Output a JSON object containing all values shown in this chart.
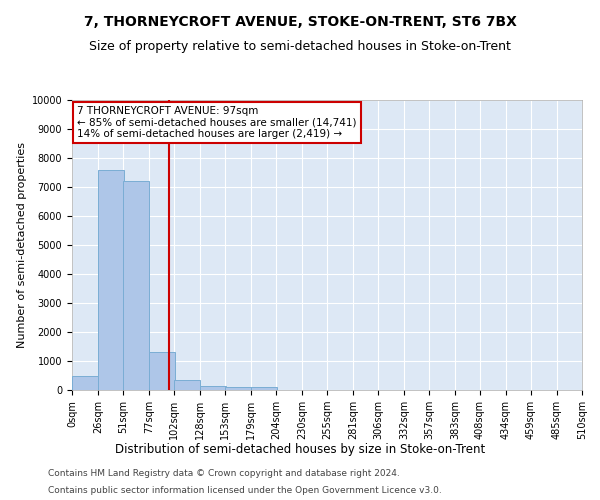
{
  "title": "7, THORNEYCROFT AVENUE, STOKE-ON-TRENT, ST6 7BX",
  "subtitle": "Size of property relative to semi-detached houses in Stoke-on-Trent",
  "xlabel": "Distribution of semi-detached houses by size in Stoke-on-Trent",
  "ylabel": "Number of semi-detached properties",
  "footer1": "Contains HM Land Registry data © Crown copyright and database right 2024.",
  "footer2": "Contains public sector information licensed under the Open Government Licence v3.0.",
  "annotation_title": "7 THORNEYCROFT AVENUE: 97sqm",
  "annotation_line1": "← 85% of semi-detached houses are smaller (14,741)",
  "annotation_line2": "14% of semi-detached houses are larger (2,419) →",
  "property_size": 97,
  "bar_left_edges": [
    0,
    26,
    51,
    77,
    102,
    128,
    153,
    179,
    204,
    230,
    255,
    281,
    306,
    332,
    357,
    383,
    408,
    434,
    459,
    485
  ],
  "bar_heights": [
    500,
    7600,
    7200,
    1300,
    350,
    150,
    100,
    100,
    0,
    0,
    0,
    0,
    0,
    0,
    0,
    0,
    0,
    0,
    0,
    0
  ],
  "bar_width": 25.5,
  "bar_color": "#aec6e8",
  "bar_edge_color": "#7aadd4",
  "vline_color": "#cc0000",
  "vline_x": 97,
  "annotation_box_color": "#cc0000",
  "bg_color": "#ffffff",
  "plot_bg_color": "#dde8f5",
  "ylim": [
    0,
    10000
  ],
  "xlim": [
    0,
    510
  ],
  "yticks": [
    0,
    1000,
    2000,
    3000,
    4000,
    5000,
    6000,
    7000,
    8000,
    9000,
    10000
  ],
  "xtick_labels": [
    "0sqm",
    "26sqm",
    "51sqm",
    "77sqm",
    "102sqm",
    "128sqm",
    "153sqm",
    "179sqm",
    "204sqm",
    "230sqm",
    "255sqm",
    "281sqm",
    "306sqm",
    "332sqm",
    "357sqm",
    "383sqm",
    "408sqm",
    "434sqm",
    "459sqm",
    "485sqm",
    "510sqm"
  ],
  "xtick_positions": [
    0,
    26,
    51,
    77,
    102,
    128,
    153,
    179,
    204,
    230,
    255,
    281,
    306,
    332,
    357,
    383,
    408,
    434,
    459,
    485,
    510
  ],
  "title_fontsize": 10,
  "subtitle_fontsize": 9,
  "xlabel_fontsize": 8.5,
  "ylabel_fontsize": 8,
  "tick_fontsize": 7,
  "annotation_fontsize": 7.5,
  "footer_fontsize": 6.5
}
